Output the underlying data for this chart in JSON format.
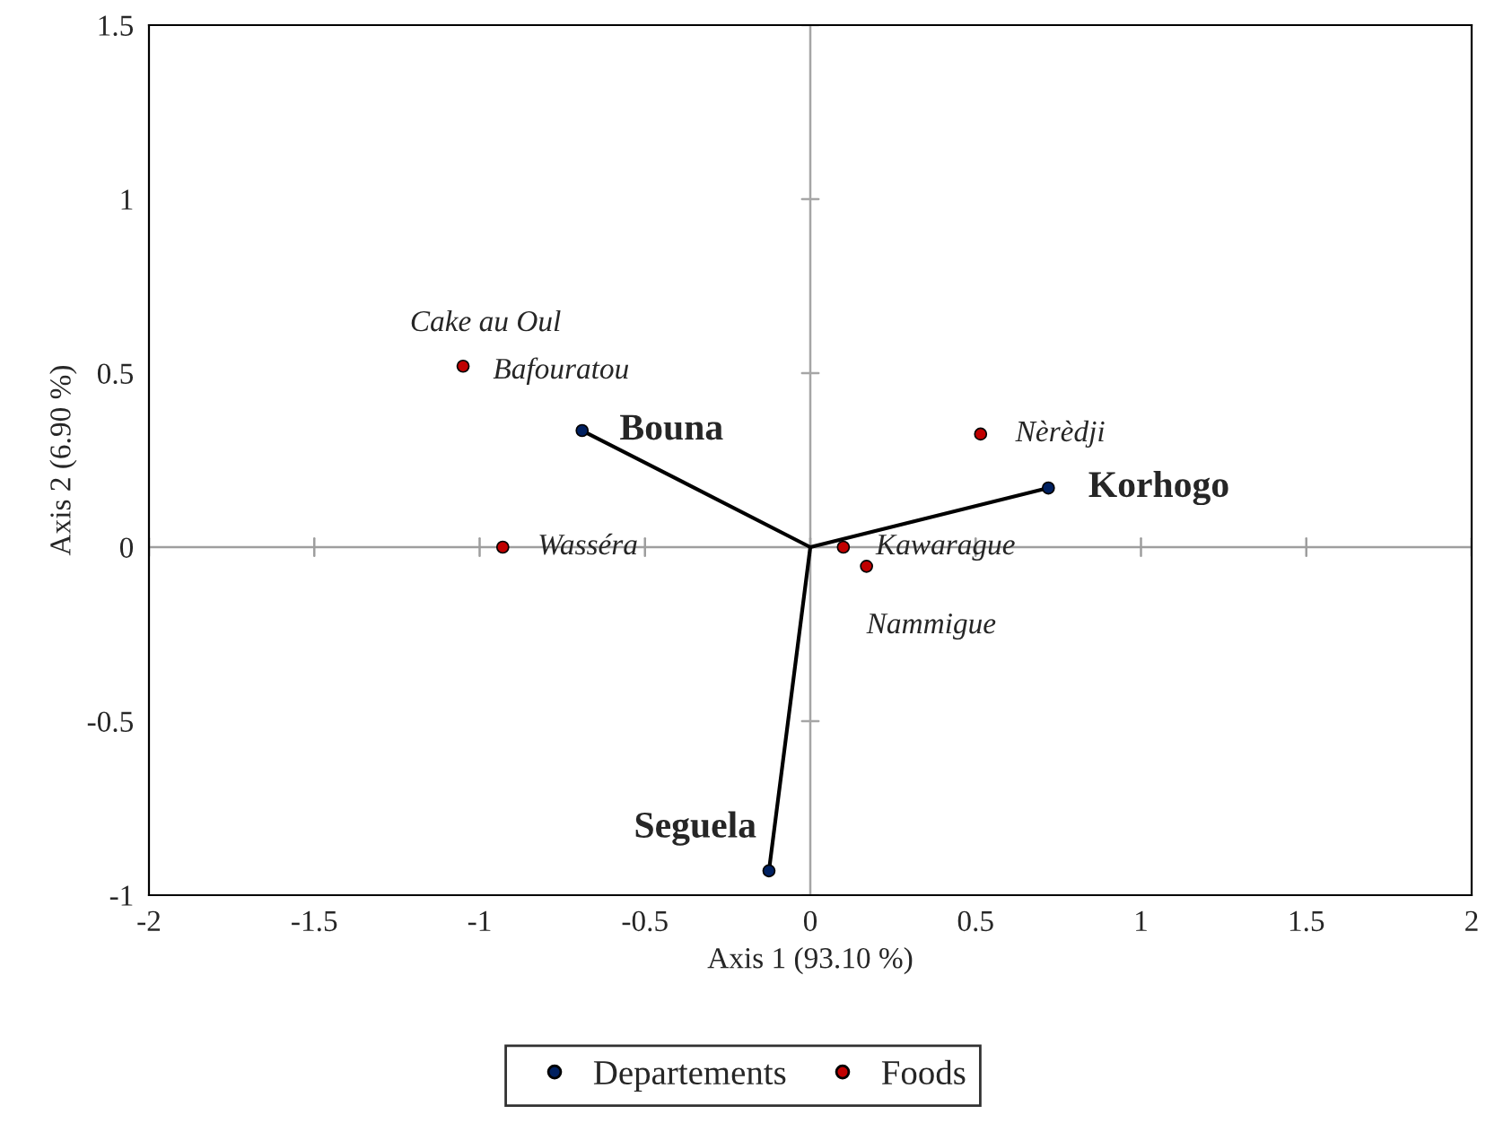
{
  "chart_data": {
    "type": "scatter",
    "xlabel": "Axis 1 (93.10 %)",
    "ylabel": "Axis 2 (6.90 %)",
    "xlim": [
      -2,
      2
    ],
    "xticks": [
      -2,
      -1.5,
      -1,
      -0.5,
      0,
      0.5,
      1,
      1.5,
      2
    ],
    "ylim": [
      -1,
      1.5
    ],
    "yticks": [
      -1,
      -0.5,
      0,
      0.5,
      1,
      1.5
    ],
    "grid": false,
    "legend": "bottom",
    "marker": "circle",
    "ref_lines": [
      {
        "axis": "x",
        "value": 0,
        "color": "#a6a6a6"
      },
      {
        "axis": "y",
        "value": 0,
        "color": "#9e9e9e"
      }
    ],
    "series": [
      {
        "type": "line",
        "marker": "none",
        "color": "#000000",
        "x": [
          0,
          -0.69
        ],
        "values": [
          0,
          0.335
        ]
      },
      {
        "type": "line",
        "marker": "none",
        "color": "#000000",
        "x": [
          0,
          0.72
        ],
        "values": [
          0,
          0.17
        ]
      },
      {
        "type": "line",
        "marker": "none",
        "color": "#000000",
        "x": [
          0,
          -0.125
        ],
        "values": [
          0,
          -0.93
        ]
      },
      {
        "name": "Departements",
        "color": "#002060",
        "x": [
          -0.69,
          0.72,
          -0.125
        ],
        "values": [
          0.335,
          0.17,
          -0.93
        ]
      },
      {
        "name": "Foods",
        "color": "#c00000",
        "x": [
          -1.05,
          -0.93,
          0.515,
          0.1,
          0.17
        ],
        "values": [
          0.52,
          0.0,
          0.325,
          0.0,
          -0.055
        ]
      }
    ],
    "annotations": [
      {
        "text": "Bouna",
        "x": -0.69,
        "y": 0.335
      },
      {
        "text": "Korhogo",
        "x": 0.72,
        "y": 0.17
      },
      {
        "text": "Seguela",
        "x": -0.125,
        "y": -0.93
      },
      {
        "text": "Cake au Oul",
        "x": -1.05,
        "y": 0.52
      },
      {
        "text": "Bafouratou",
        "x": -1.05,
        "y": 0.52
      },
      {
        "text": "Wasséra",
        "x": -0.93,
        "y": 0.0
      },
      {
        "text": "Nèrèdji",
        "x": 0.515,
        "y": 0.325
      },
      {
        "text": "Kawarague",
        "x": 0.1,
        "y": 0.0
      },
      {
        "text": "Nammigue",
        "x": 0.17,
        "y": -0.055
      }
    ]
  }
}
